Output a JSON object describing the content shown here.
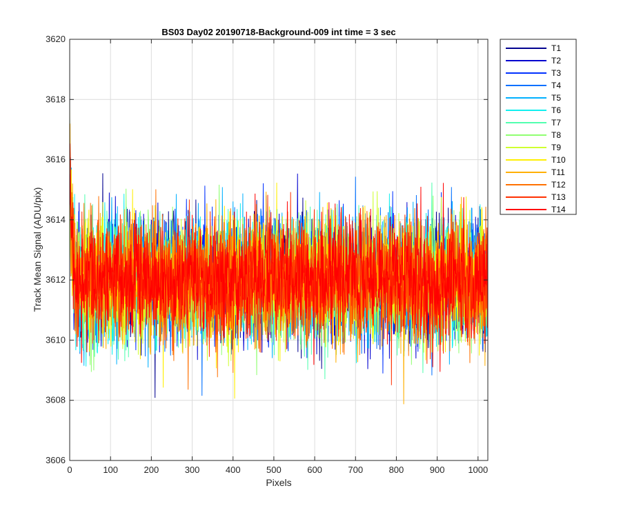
{
  "chart_data": {
    "type": "line",
    "title": "BS03 Day02 20190718-Background-009 int time = 3 sec",
    "xlabel": "Pixels",
    "ylabel": "Track Mean Signal (ADU/pix)",
    "xlim": [
      0,
      1024
    ],
    "ylim": [
      3606,
      3620
    ],
    "xticks": [
      0,
      100,
      200,
      300,
      400,
      500,
      600,
      700,
      800,
      900,
      1000
    ],
    "yticks": [
      3606,
      3608,
      3610,
      3612,
      3614,
      3616,
      3618,
      3620
    ],
    "grid": true,
    "legend_position": "outside-top-right",
    "series_summary": {
      "n_points": 1024,
      "approx_mean": 3612,
      "approx_std": 1.0,
      "start_values_elevated": 3617
    },
    "series": [
      {
        "name": "T1",
        "color": "#00008f"
      },
      {
        "name": "T2",
        "color": "#0000cf"
      },
      {
        "name": "T3",
        "color": "#0030ff"
      },
      {
        "name": "T4",
        "color": "#0070ff"
      },
      {
        "name": "T5",
        "color": "#00b0ff"
      },
      {
        "name": "T6",
        "color": "#10efef"
      },
      {
        "name": "T7",
        "color": "#50ffaf"
      },
      {
        "name": "T8",
        "color": "#8fff70"
      },
      {
        "name": "T9",
        "color": "#cfff30"
      },
      {
        "name": "T10",
        "color": "#ffef00"
      },
      {
        "name": "T11",
        "color": "#ffaf00"
      },
      {
        "name": "T12",
        "color": "#ff7000"
      },
      {
        "name": "T13",
        "color": "#ff3000"
      },
      {
        "name": "T14",
        "color": "#ff0000"
      }
    ]
  }
}
